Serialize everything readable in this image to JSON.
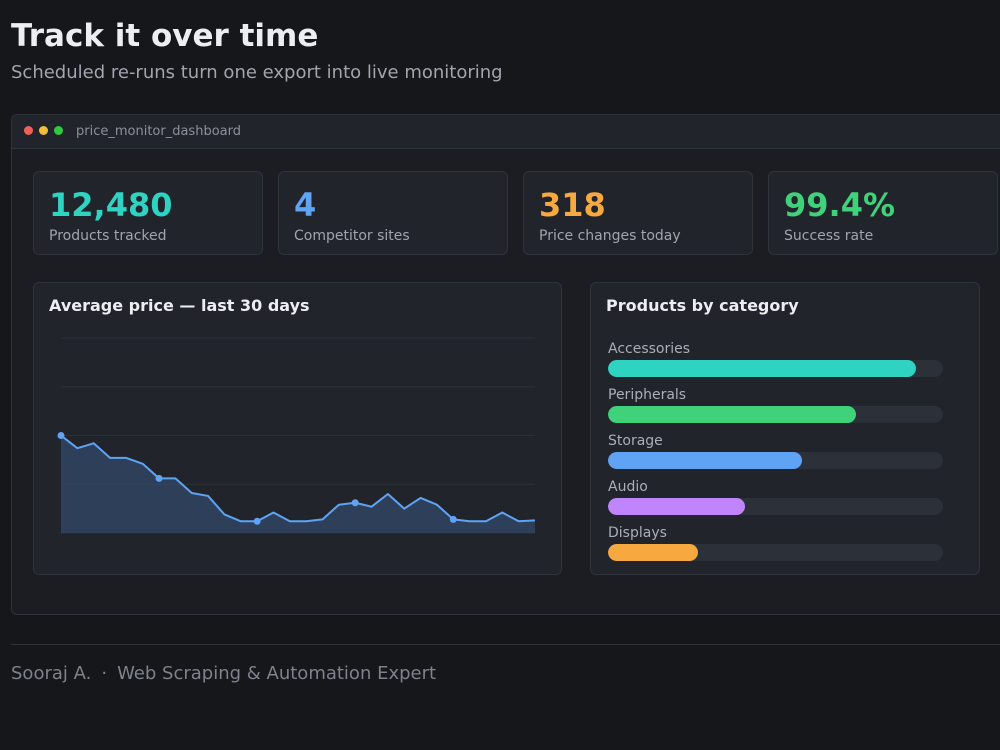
{
  "header": {
    "title": "Track it over time",
    "subtitle": "Scheduled re-runs turn one export into live monitoring"
  },
  "window": {
    "title": "price_monitor_dashboard"
  },
  "stats": [
    {
      "value": "12,480",
      "label": "Products tracked",
      "color": "#2ed3c2"
    },
    {
      "value": "4",
      "label": "Competitor sites",
      "color": "#5fa3f5"
    },
    {
      "value": "318",
      "label": "Price changes today",
      "color": "#f7a940"
    },
    {
      "value": "99.4%",
      "label": "Success rate",
      "color": "#3fd27a"
    }
  ],
  "price_panel": {
    "title": "Average price — last 30 days"
  },
  "category_panel": {
    "title": "Products by category",
    "items": [
      {
        "label": "Accessories",
        "fraction": 0.92,
        "color": "#2ed3c2"
      },
      {
        "label": "Peripherals",
        "fraction": 0.74,
        "color": "#3fd27a"
      },
      {
        "label": "Storage",
        "fraction": 0.58,
        "color": "#5fa3f5"
      },
      {
        "label": "Audio",
        "fraction": 0.41,
        "color": "#c084fc"
      },
      {
        "label": "Displays",
        "fraction": 0.27,
        "color": "#f7a940"
      }
    ]
  },
  "chart_data": {
    "type": "area",
    "title": "Average price — last 30 days",
    "xlabel": "",
    "ylabel": "",
    "x": [
      1,
      2,
      3,
      4,
      5,
      6,
      7,
      8,
      9,
      10,
      11,
      12,
      13,
      14,
      15,
      16,
      17,
      18,
      19,
      20,
      21,
      22,
      23,
      24,
      25,
      26,
      27,
      28,
      29,
      30
    ],
    "series": [
      {
        "values": [
          100,
          87,
          92,
          77,
          77,
          71,
          56,
          56,
          41,
          38,
          19,
          12,
          12,
          21,
          12,
          12,
          14,
          29,
          31,
          27,
          40,
          25,
          36,
          29,
          14,
          12,
          12,
          21,
          12,
          13
        ]
      }
    ],
    "ylim": [
      0,
      200
    ],
    "marked_points": [
      1,
      7,
      13,
      19,
      25
    ],
    "grid": true,
    "line_color": "#5fa3f5"
  },
  "footer": {
    "author": "Sooraj A.",
    "separator": "·",
    "role": "Web Scraping & Automation Expert"
  }
}
